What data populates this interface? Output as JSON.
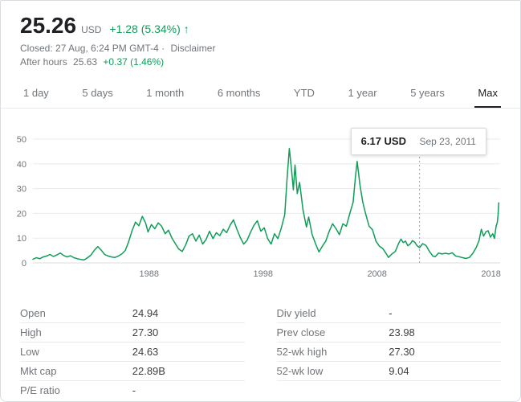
{
  "header": {
    "price": "25.26",
    "currency": "USD",
    "change": "+1.28 (5.34%)",
    "arrow": "↑",
    "status_prefix": "Closed: 27 Aug, 6:24 PM GMT-4 ·",
    "disclaimer": "Disclaimer",
    "after_hours_label": "After hours",
    "after_hours_price": "25.63",
    "after_hours_change": "+0.37 (1.46%)"
  },
  "tabs": [
    {
      "label": "1 day",
      "active": false
    },
    {
      "label": "5 days",
      "active": false
    },
    {
      "label": "1 month",
      "active": false
    },
    {
      "label": "6 months",
      "active": false
    },
    {
      "label": "YTD",
      "active": false
    },
    {
      "label": "1 year",
      "active": false
    },
    {
      "label": "5 years",
      "active": false
    },
    {
      "label": "Max",
      "active": true
    }
  ],
  "tooltip": {
    "price": "6.17 USD",
    "date": "Sep 23, 2011"
  },
  "stats": {
    "left": [
      {
        "label": "Open",
        "value": "24.94"
      },
      {
        "label": "High",
        "value": "27.30"
      },
      {
        "label": "Low",
        "value": "24.63"
      },
      {
        "label": "Mkt cap",
        "value": "22.89B"
      },
      {
        "label": "P/E ratio",
        "value": "-"
      }
    ],
    "right": [
      {
        "label": "Div yield",
        "value": "-"
      },
      {
        "label": "Prev close",
        "value": "23.98"
      },
      {
        "label": "52-wk high",
        "value": "27.30"
      },
      {
        "label": "52-wk low",
        "value": "9.04"
      }
    ]
  },
  "chart_data": {
    "type": "line",
    "title": "Max range stock price history",
    "xlabel": "",
    "ylabel": "USD",
    "xlim": [
      1977.8,
      2018.8
    ],
    "ylim": [
      0,
      50
    ],
    "x_ticks": [
      1988,
      1998,
      2008,
      2018
    ],
    "y_ticks": [
      0,
      10,
      20,
      30,
      40,
      50
    ],
    "grid": true,
    "line_color": "#0f9d58",
    "crosshair": {
      "x": 2011.73,
      "y": 6.17,
      "label_price": "6.17 USD",
      "label_date": "Sep 23, 2011"
    },
    "series": [
      {
        "name": "price",
        "points": [
          [
            1977.8,
            1.5
          ],
          [
            1978.1,
            2.1
          ],
          [
            1978.4,
            1.7
          ],
          [
            1978.7,
            2.4
          ],
          [
            1979.0,
            2.8
          ],
          [
            1979.3,
            3.4
          ],
          [
            1979.6,
            2.6
          ],
          [
            1979.9,
            3.2
          ],
          [
            1980.2,
            4.0
          ],
          [
            1980.5,
            3.0
          ],
          [
            1980.8,
            2.4
          ],
          [
            1981.1,
            2.9
          ],
          [
            1981.4,
            2.1
          ],
          [
            1981.7,
            1.7
          ],
          [
            1982.0,
            1.4
          ],
          [
            1982.3,
            1.2
          ],
          [
            1982.6,
            2.1
          ],
          [
            1982.9,
            3.2
          ],
          [
            1983.2,
            5.2
          ],
          [
            1983.5,
            6.6
          ],
          [
            1983.8,
            5.1
          ],
          [
            1984.1,
            3.4
          ],
          [
            1984.4,
            2.8
          ],
          [
            1984.7,
            2.4
          ],
          [
            1985.0,
            2.2
          ],
          [
            1985.3,
            2.8
          ],
          [
            1985.6,
            3.6
          ],
          [
            1985.9,
            5.0
          ],
          [
            1986.2,
            8.5
          ],
          [
            1986.5,
            13.0
          ],
          [
            1986.8,
            16.5
          ],
          [
            1987.1,
            15.0
          ],
          [
            1987.4,
            18.8
          ],
          [
            1987.7,
            16.0
          ],
          [
            1987.9,
            12.5
          ],
          [
            1988.2,
            15.5
          ],
          [
            1988.5,
            13.8
          ],
          [
            1988.8,
            16.2
          ],
          [
            1989.1,
            14.8
          ],
          [
            1989.4,
            11.8
          ],
          [
            1989.7,
            13.2
          ],
          [
            1990.0,
            10.0
          ],
          [
            1990.3,
            7.8
          ],
          [
            1990.6,
            5.6
          ],
          [
            1990.9,
            4.6
          ],
          [
            1991.2,
            7.2
          ],
          [
            1991.5,
            10.8
          ],
          [
            1991.8,
            11.8
          ],
          [
            1992.1,
            8.8
          ],
          [
            1992.4,
            11.2
          ],
          [
            1992.7,
            7.6
          ],
          [
            1993.0,
            9.5
          ],
          [
            1993.3,
            12.8
          ],
          [
            1993.6,
            9.8
          ],
          [
            1993.9,
            12.2
          ],
          [
            1994.2,
            11.0
          ],
          [
            1994.5,
            13.6
          ],
          [
            1994.8,
            12.2
          ],
          [
            1995.1,
            15.2
          ],
          [
            1995.4,
            17.4
          ],
          [
            1995.7,
            13.6
          ],
          [
            1996.0,
            10.2
          ],
          [
            1996.3,
            7.6
          ],
          [
            1996.6,
            9.2
          ],
          [
            1996.9,
            12.4
          ],
          [
            1997.2,
            15.2
          ],
          [
            1997.5,
            17.0
          ],
          [
            1997.8,
            12.8
          ],
          [
            1998.1,
            14.2
          ],
          [
            1998.4,
            9.8
          ],
          [
            1998.7,
            7.6
          ],
          [
            1999.0,
            11.8
          ],
          [
            1999.3,
            9.8
          ],
          [
            1999.6,
            14.2
          ],
          [
            1999.9,
            19.5
          ],
          [
            2000.1,
            34.0
          ],
          [
            2000.3,
            46.2
          ],
          [
            2000.5,
            37.5
          ],
          [
            2000.65,
            29.5
          ],
          [
            2000.8,
            39.5
          ],
          [
            2001.0,
            28.0
          ],
          [
            2001.2,
            32.5
          ],
          [
            2001.5,
            21.5
          ],
          [
            2001.8,
            14.5
          ],
          [
            2002.0,
            18.5
          ],
          [
            2002.3,
            11.5
          ],
          [
            2002.6,
            7.8
          ],
          [
            2002.9,
            4.4
          ],
          [
            2003.2,
            6.8
          ],
          [
            2003.5,
            8.8
          ],
          [
            2003.8,
            12.8
          ],
          [
            2004.1,
            15.8
          ],
          [
            2004.4,
            13.8
          ],
          [
            2004.7,
            11.4
          ],
          [
            2005.0,
            15.8
          ],
          [
            2005.3,
            14.8
          ],
          [
            2005.6,
            19.8
          ],
          [
            2005.9,
            24.5
          ],
          [
            2006.1,
            34.5
          ],
          [
            2006.25,
            41.0
          ],
          [
            2006.5,
            31.5
          ],
          [
            2006.75,
            24.5
          ],
          [
            2007.0,
            19.8
          ],
          [
            2007.3,
            14.8
          ],
          [
            2007.6,
            13.4
          ],
          [
            2007.9,
            8.8
          ],
          [
            2008.2,
            6.8
          ],
          [
            2008.5,
            5.8
          ],
          [
            2008.8,
            3.8
          ],
          [
            2009.0,
            2.2
          ],
          [
            2009.3,
            3.6
          ],
          [
            2009.6,
            4.6
          ],
          [
            2009.9,
            8.0
          ],
          [
            2010.1,
            9.6
          ],
          [
            2010.3,
            8.2
          ],
          [
            2010.5,
            8.8
          ],
          [
            2010.7,
            6.9
          ],
          [
            2010.9,
            7.6
          ],
          [
            2011.1,
            9.0
          ],
          [
            2011.3,
            8.4
          ],
          [
            2011.5,
            7.0
          ],
          [
            2011.73,
            6.17
          ],
          [
            2012.0,
            7.8
          ],
          [
            2012.3,
            7.0
          ],
          [
            2012.6,
            4.6
          ],
          [
            2012.9,
            2.8
          ],
          [
            2013.1,
            2.5
          ],
          [
            2013.4,
            4.0
          ],
          [
            2013.7,
            3.6
          ],
          [
            2014.0,
            3.9
          ],
          [
            2014.3,
            3.6
          ],
          [
            2014.6,
            4.1
          ],
          [
            2014.9,
            2.8
          ],
          [
            2015.2,
            2.5
          ],
          [
            2015.5,
            2.1
          ],
          [
            2015.8,
            1.8
          ],
          [
            2016.1,
            2.2
          ],
          [
            2016.4,
            3.8
          ],
          [
            2016.7,
            6.2
          ],
          [
            2016.95,
            9.0
          ],
          [
            2017.15,
            13.6
          ],
          [
            2017.35,
            10.8
          ],
          [
            2017.55,
            12.6
          ],
          [
            2017.75,
            13.0
          ],
          [
            2017.95,
            10.4
          ],
          [
            2018.15,
            11.8
          ],
          [
            2018.3,
            9.9
          ],
          [
            2018.45,
            14.8
          ],
          [
            2018.55,
            16.4
          ],
          [
            2018.62,
            19.2
          ],
          [
            2018.68,
            24.3
          ]
        ]
      }
    ]
  }
}
